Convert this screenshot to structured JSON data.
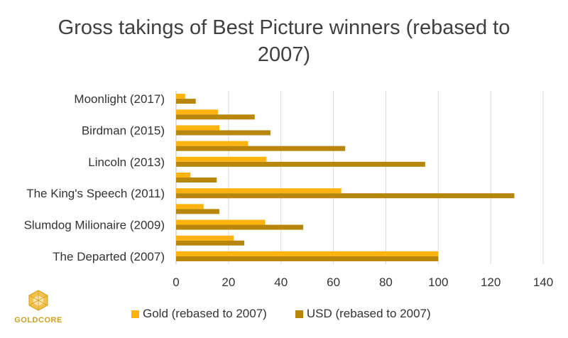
{
  "chart_data": {
    "type": "bar",
    "orientation": "horizontal",
    "title": "Gross takings of Best Picture winners (rebased to 2007)",
    "title_lines": [
      "Gross takings of Best Picture winners (rebased to",
      "2007)"
    ],
    "xlabel": "",
    "ylabel": "",
    "xlim": [
      0,
      140
    ],
    "xticks": [
      0,
      20,
      40,
      60,
      80,
      100,
      120,
      140
    ],
    "grid": true,
    "legend_position": "bottom",
    "categories": [
      "The Departed (2007)",
      "",
      "Slumdog Milionaire (2009)",
      "",
      "The King's Speech (2011)",
      "",
      "Lincoln (2013)",
      "",
      "Birdman (2015)",
      "",
      "Moonlight (2017)"
    ],
    "series": [
      {
        "name": "Gold (rebased to 2007)",
        "color": "#FFB30F",
        "values": [
          100,
          22,
          34,
          10.5,
          63,
          5.5,
          34.5,
          27.5,
          16.5,
          16,
          3.5
        ]
      },
      {
        "name": "USD (rebased to 2007)",
        "color": "#B8860B",
        "values": [
          100,
          26,
          48.5,
          16.5,
          129,
          15.5,
          95,
          64.5,
          36,
          30,
          7.5
        ]
      }
    ]
  },
  "logo": {
    "text": "GoldCore"
  }
}
